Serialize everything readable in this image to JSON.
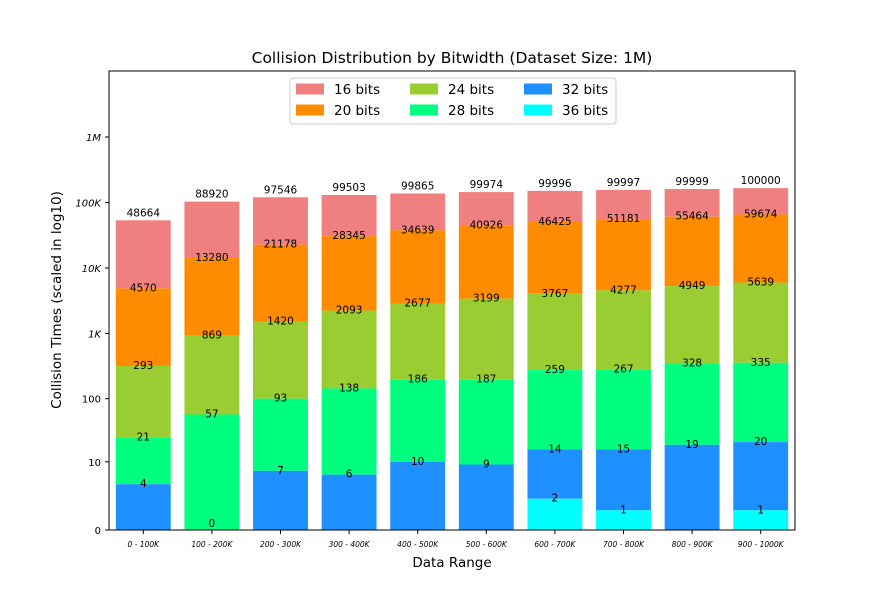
{
  "chart_data": {
    "type": "bar",
    "stacked": true,
    "title": "Collision Distribution by Bitwidth (Dataset Size: 1M)",
    "xlabel": "Data Range",
    "ylabel": "Collision Times (scaled in log10)",
    "yscale": "log10",
    "categories": [
      "0 - 100K",
      "100 - 200K",
      "200 - 300K",
      "300 - 400K",
      "400 - 500K",
      "500 - 600K",
      "600 - 700K",
      "700 - 800K",
      "800 - 900K",
      "900 - 1000K"
    ],
    "y_ticks": [
      {
        "value": 0,
        "label": "0"
      },
      {
        "value": 10,
        "label": "10"
      },
      {
        "value": 100,
        "label": "100"
      },
      {
        "value": 1000,
        "label": "1K"
      },
      {
        "value": 10000,
        "label": "10K"
      },
      {
        "value": 100000,
        "label": "100K"
      },
      {
        "value": 1000000,
        "label": "1M"
      }
    ],
    "ylim": [
      0,
      10000000
    ],
    "legend_position": "top-center",
    "series": [
      {
        "name": "16 bits",
        "color": "#f08080",
        "values": [
          48664,
          88920,
          97546,
          99503,
          99865,
          99974,
          99996,
          99997,
          99999,
          100000
        ]
      },
      {
        "name": "20 bits",
        "color": "#ff8c00",
        "values": [
          4570,
          13280,
          21178,
          28345,
          34639,
          40926,
          46425,
          51181,
          55464,
          59674
        ]
      },
      {
        "name": "24 bits",
        "color": "#9acd32",
        "values": [
          293,
          869,
          1420,
          2093,
          2677,
          3199,
          3767,
          4277,
          4949,
          5639
        ]
      },
      {
        "name": "28 bits",
        "color": "#00ff7f",
        "values": [
          21,
          57,
          93,
          138,
          186,
          187,
          259,
          267,
          328,
          335
        ]
      },
      {
        "name": "32 bits",
        "color": "#1e90ff",
        "values": [
          4,
          0,
          7,
          6,
          10,
          9,
          14,
          15,
          19,
          20
        ]
      },
      {
        "name": "36 bits",
        "color": "#00ffff",
        "values": [
          0,
          0,
          0,
          0,
          0,
          0,
          2,
          1,
          0,
          1
        ]
      }
    ],
    "label_values": [
      [
        48664,
        4570,
        293,
        21,
        4,
        0
      ],
      [
        88920,
        13280,
        869,
        57,
        0,
        0
      ],
      [
        97546,
        21178,
        1420,
        93,
        7,
        0
      ],
      [
        99503,
        28345,
        2093,
        138,
        6,
        0
      ],
      [
        99865,
        34639,
        2677,
        186,
        10,
        0
      ],
      [
        99974,
        40926,
        3199,
        187,
        9,
        0
      ],
      [
        99996,
        46425,
        3767,
        259,
        14,
        2
      ],
      [
        99997,
        51181,
        4277,
        267,
        15,
        1
      ],
      [
        99999,
        55464,
        4949,
        328,
        19,
        0
      ],
      [
        100000,
        59674,
        5639,
        335,
        20,
        1
      ]
    ]
  }
}
